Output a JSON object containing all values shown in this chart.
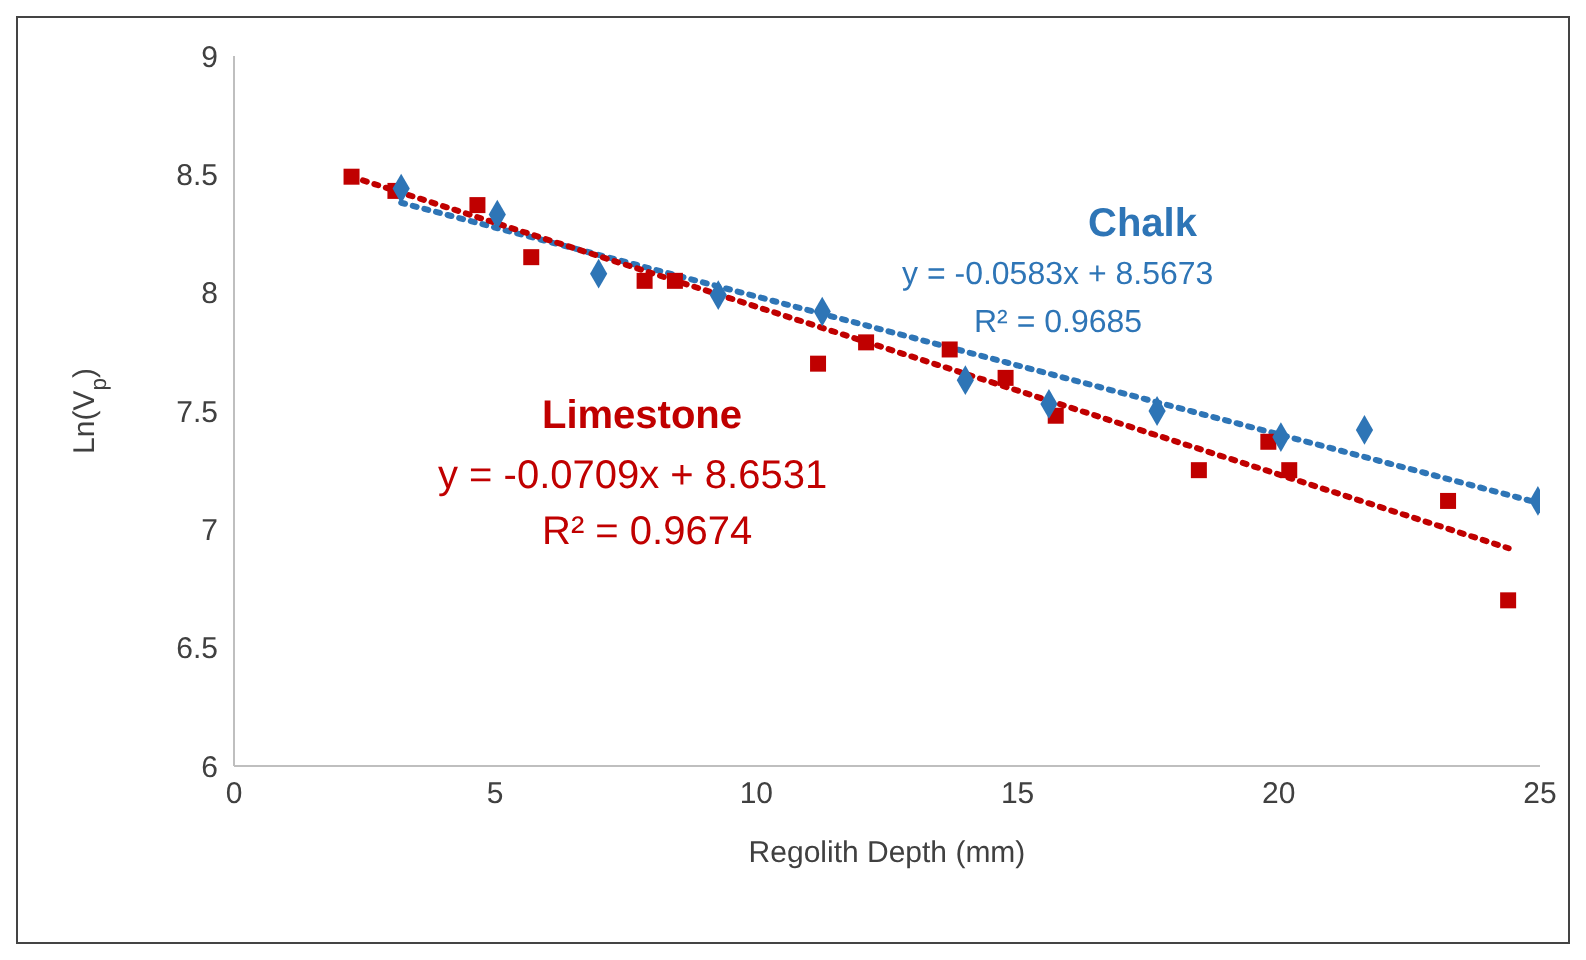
{
  "chart_data": {
    "type": "scatter",
    "xlabel": "Regolith Depth (mm)",
    "ylabel": "Ln(V$_{p}$)",
    "xlim": [
      0,
      25
    ],
    "xticks": [
      0,
      5,
      10,
      15,
      20,
      25
    ],
    "ylim": [
      6,
      9
    ],
    "yticks": [
      6,
      6.5,
      7,
      7.5,
      8,
      8.5,
      9
    ],
    "grid": false,
    "legend": false,
    "series": [
      {
        "name": "Limestone",
        "color": "#c00000",
        "marker": "square",
        "x": [
          2.25,
          3.09,
          4.66,
          5.69,
          7.86,
          8.44,
          11.18,
          12.1,
          13.7,
          14.77,
          15.73,
          18.47,
          19.8,
          20.2,
          23.24,
          24.39
        ],
        "values": [
          8.49,
          8.43,
          8.37,
          8.15,
          8.05,
          8.05,
          7.7,
          7.79,
          7.76,
          7.64,
          7.48,
          7.25,
          7.37,
          7.25,
          7.12,
          6.7
        ]
      },
      {
        "name": "Chalk",
        "color": "#2e75b6",
        "marker": "diamond",
        "x": [
          3.2,
          5.04,
          6.98,
          9.27,
          11.26,
          14.0,
          15.6,
          17.67,
          20.04,
          21.64,
          24.96
        ],
        "values": [
          8.44,
          8.33,
          8.08,
          7.99,
          7.92,
          7.63,
          7.53,
          7.5,
          7.39,
          7.42,
          7.12
        ]
      },
      {
        "type": "line",
        "color": "#2e75b6",
        "line_style": "dotted",
        "x": [
          3.2,
          25
        ],
        "values": [
          8.38,
          7.11
        ]
      },
      {
        "type": "line",
        "color": "#c00000",
        "line_style": "dotted",
        "x": [
          2.25,
          24.4
        ],
        "values": [
          8.49,
          6.92
        ]
      }
    ],
    "annotations": [
      "y = -0.0583x + 8.5673",
      "R² = 0.9685",
      "y = -0.0709x + 8.6531",
      "R² = 0.9674"
    ]
  }
}
